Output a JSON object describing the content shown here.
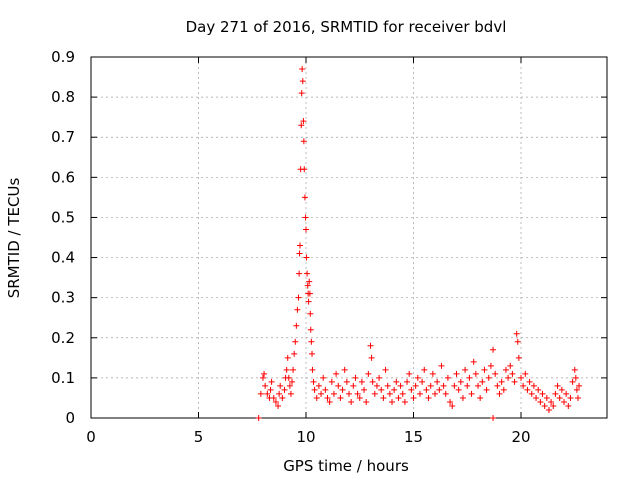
{
  "chart_data": {
    "type": "scatter",
    "title": "Day 271 of 2016, SRMTID for receiver bdvl",
    "xlabel": "GPS time / hours",
    "ylabel": "SRMTID / TECUs",
    "xlim": [
      0,
      24
    ],
    "ylim": [
      0,
      0.9
    ],
    "xticks": [
      0,
      5,
      10,
      15,
      20
    ],
    "xtick_labels": [
      "0",
      "5",
      "10",
      "15",
      "20"
    ],
    "yticks": [
      0,
      0.1,
      0.2,
      0.3,
      0.4,
      0.5,
      0.6,
      0.7,
      0.8,
      0.9
    ],
    "ytick_labels": [
      "0",
      "0.1",
      "0.2",
      "0.3",
      "0.4",
      "0.5",
      "0.6",
      "0.7",
      "0.8",
      "0.9"
    ],
    "grid": true,
    "marker": "+",
    "color": "#ff0000",
    "series": [
      {
        "name": "SRMTID",
        "points": [
          [
            7.8,
            0.0
          ],
          [
            18.7,
            0.0
          ],
          [
            7.9,
            0.06
          ],
          [
            8.0,
            0.1
          ],
          [
            8.05,
            0.11
          ],
          [
            8.1,
            0.08
          ],
          [
            8.2,
            0.06
          ],
          [
            8.3,
            0.05
          ],
          [
            8.35,
            0.07
          ],
          [
            8.4,
            0.09
          ],
          [
            8.5,
            0.05
          ],
          [
            8.6,
            0.04
          ],
          [
            8.7,
            0.03
          ],
          [
            8.75,
            0.06
          ],
          [
            8.8,
            0.08
          ],
          [
            8.9,
            0.05
          ],
          [
            9.0,
            0.07
          ],
          [
            9.05,
            0.1
          ],
          [
            9.1,
            0.12
          ],
          [
            9.15,
            0.15
          ],
          [
            9.2,
            0.1
          ],
          [
            9.25,
            0.08
          ],
          [
            9.3,
            0.06
          ],
          [
            9.35,
            0.09
          ],
          [
            9.4,
            0.12
          ],
          [
            9.45,
            0.16
          ],
          [
            9.5,
            0.19
          ],
          [
            9.55,
            0.23
          ],
          [
            9.6,
            0.27
          ],
          [
            9.65,
            0.3
          ],
          [
            9.68,
            0.36
          ],
          [
            9.7,
            0.41
          ],
          [
            9.72,
            0.43
          ],
          [
            9.75,
            0.62
          ],
          [
            9.78,
            0.73
          ],
          [
            9.8,
            0.81
          ],
          [
            9.82,
            0.87
          ],
          [
            9.85,
            0.84
          ],
          [
            9.88,
            0.74
          ],
          [
            9.9,
            0.69
          ],
          [
            9.92,
            0.62
          ],
          [
            9.95,
            0.55
          ],
          [
            9.98,
            0.5
          ],
          [
            10.0,
            0.47
          ],
          [
            10.02,
            0.4
          ],
          [
            10.05,
            0.36
          ],
          [
            10.08,
            0.33
          ],
          [
            10.1,
            0.31
          ],
          [
            10.12,
            0.29
          ],
          [
            10.15,
            0.34
          ],
          [
            10.18,
            0.31
          ],
          [
            10.2,
            0.26
          ],
          [
            10.22,
            0.22
          ],
          [
            10.25,
            0.19
          ],
          [
            10.28,
            0.16
          ],
          [
            10.3,
            0.12
          ],
          [
            10.35,
            0.09
          ],
          [
            10.4,
            0.07
          ],
          [
            10.5,
            0.05
          ],
          [
            10.6,
            0.08
          ],
          [
            10.7,
            0.06
          ],
          [
            10.8,
            0.1
          ],
          [
            10.9,
            0.07
          ],
          [
            11.0,
            0.05
          ],
          [
            11.1,
            0.04
          ],
          [
            11.2,
            0.09
          ],
          [
            11.3,
            0.06
          ],
          [
            11.4,
            0.11
          ],
          [
            11.5,
            0.08
          ],
          [
            11.6,
            0.05
          ],
          [
            11.7,
            0.07
          ],
          [
            11.8,
            0.12
          ],
          [
            11.9,
            0.09
          ],
          [
            12.0,
            0.06
          ],
          [
            12.1,
            0.04
          ],
          [
            12.2,
            0.08
          ],
          [
            12.3,
            0.1
          ],
          [
            12.4,
            0.06
          ],
          [
            12.5,
            0.05
          ],
          [
            12.6,
            0.09
          ],
          [
            12.7,
            0.07
          ],
          [
            12.8,
            0.04
          ],
          [
            12.9,
            0.11
          ],
          [
            13.0,
            0.18
          ],
          [
            13.05,
            0.15
          ],
          [
            13.1,
            0.09
          ],
          [
            13.2,
            0.06
          ],
          [
            13.3,
            0.08
          ],
          [
            13.4,
            0.1
          ],
          [
            13.5,
            0.07
          ],
          [
            13.6,
            0.05
          ],
          [
            13.7,
            0.12
          ],
          [
            13.8,
            0.08
          ],
          [
            13.9,
            0.06
          ],
          [
            14.0,
            0.04
          ],
          [
            14.1,
            0.07
          ],
          [
            14.2,
            0.09
          ],
          [
            14.3,
            0.05
          ],
          [
            14.4,
            0.08
          ],
          [
            14.5,
            0.06
          ],
          [
            14.6,
            0.04
          ],
          [
            14.7,
            0.09
          ],
          [
            14.8,
            0.11
          ],
          [
            14.9,
            0.07
          ],
          [
            15.0,
            0.05
          ],
          [
            15.1,
            0.08
          ],
          [
            15.2,
            0.1
          ],
          [
            15.3,
            0.06
          ],
          [
            15.4,
            0.09
          ],
          [
            15.5,
            0.12
          ],
          [
            15.6,
            0.07
          ],
          [
            15.7,
            0.05
          ],
          [
            15.8,
            0.08
          ],
          [
            15.9,
            0.11
          ],
          [
            16.0,
            0.06
          ],
          [
            16.1,
            0.09
          ],
          [
            16.2,
            0.07
          ],
          [
            16.3,
            0.13
          ],
          [
            16.4,
            0.08
          ],
          [
            16.5,
            0.06
          ],
          [
            16.6,
            0.1
          ],
          [
            16.7,
            0.04
          ],
          [
            16.8,
            0.03
          ],
          [
            16.9,
            0.08
          ],
          [
            17.0,
            0.11
          ],
          [
            17.1,
            0.07
          ],
          [
            17.2,
            0.09
          ],
          [
            17.3,
            0.05
          ],
          [
            17.4,
            0.12
          ],
          [
            17.5,
            0.08
          ],
          [
            17.6,
            0.1
          ],
          [
            17.7,
            0.06
          ],
          [
            17.8,
            0.14
          ],
          [
            17.9,
            0.11
          ],
          [
            18.0,
            0.08
          ],
          [
            18.1,
            0.05
          ],
          [
            18.2,
            0.09
          ],
          [
            18.3,
            0.12
          ],
          [
            18.4,
            0.07
          ],
          [
            18.5,
            0.1
          ],
          [
            18.6,
            0.13
          ],
          [
            18.7,
            0.17
          ],
          [
            18.8,
            0.11
          ],
          [
            18.9,
            0.08
          ],
          [
            19.0,
            0.06
          ],
          [
            19.1,
            0.09
          ],
          [
            19.2,
            0.07
          ],
          [
            19.3,
            0.12
          ],
          [
            19.4,
            0.1
          ],
          [
            19.5,
            0.13
          ],
          [
            19.6,
            0.11
          ],
          [
            19.7,
            0.09
          ],
          [
            19.8,
            0.21
          ],
          [
            19.85,
            0.19
          ],
          [
            19.9,
            0.15
          ],
          [
            20.0,
            0.1
          ],
          [
            20.1,
            0.08
          ],
          [
            20.2,
            0.11
          ],
          [
            20.3,
            0.07
          ],
          [
            20.4,
            0.09
          ],
          [
            20.5,
            0.06
          ],
          [
            20.6,
            0.08
          ],
          [
            20.7,
            0.05
          ],
          [
            20.8,
            0.07
          ],
          [
            20.9,
            0.04
          ],
          [
            21.0,
            0.06
          ],
          [
            21.1,
            0.03
          ],
          [
            21.2,
            0.05
          ],
          [
            21.3,
            0.02
          ],
          [
            21.4,
            0.04
          ],
          [
            21.5,
            0.03
          ],
          [
            21.6,
            0.06
          ],
          [
            21.7,
            0.08
          ],
          [
            21.8,
            0.05
          ],
          [
            21.9,
            0.07
          ],
          [
            22.0,
            0.04
          ],
          [
            22.1,
            0.06
          ],
          [
            22.2,
            0.03
          ],
          [
            22.3,
            0.05
          ],
          [
            22.4,
            0.09
          ],
          [
            22.5,
            0.12
          ],
          [
            22.55,
            0.1
          ],
          [
            22.6,
            0.07
          ],
          [
            22.65,
            0.05
          ],
          [
            22.7,
            0.08
          ]
        ]
      }
    ]
  }
}
